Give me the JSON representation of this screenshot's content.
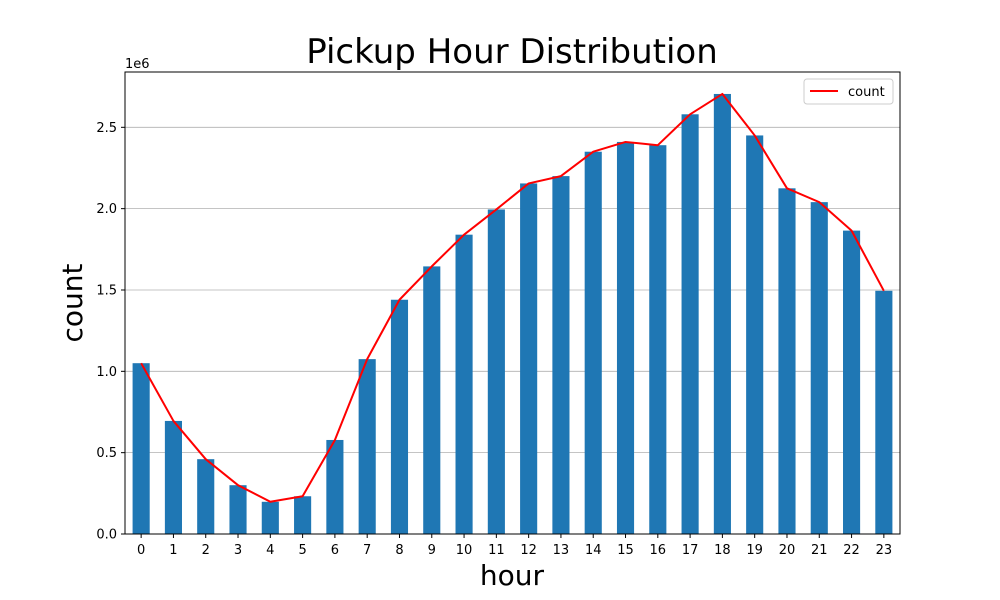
{
  "chart_data": {
    "type": "bar",
    "title": "Pickup Hour Distribution",
    "xlabel": "hour",
    "ylabel": "count",
    "y_offset_label": "1e6",
    "y_scale": 1000000,
    "categories": [
      "0",
      "1",
      "2",
      "3",
      "4",
      "5",
      "6",
      "7",
      "8",
      "9",
      "10",
      "11",
      "12",
      "13",
      "14",
      "15",
      "16",
      "17",
      "18",
      "19",
      "20",
      "21",
      "22",
      "23"
    ],
    "values": [
      1050000,
      695000,
      460000,
      300000,
      198000,
      232000,
      578000,
      1075000,
      1440000,
      1645000,
      1840000,
      1995000,
      2155000,
      2200000,
      2350000,
      2410000,
      2390000,
      2580000,
      2705000,
      2450000,
      2125000,
      2040000,
      1865000,
      1495000
    ],
    "ylim": [
      0,
      2840000
    ],
    "yticks": [
      0,
      500000,
      1000000,
      1500000,
      2000000,
      2500000
    ],
    "ytick_labels": [
      "0.0",
      "0.5",
      "1.0",
      "1.5",
      "2.0",
      "2.5"
    ],
    "grid": "y",
    "series": [
      {
        "name": "",
        "kind": "bar",
        "color": "#1f77b4"
      },
      {
        "name": "count",
        "kind": "line",
        "color": "#ff0000"
      }
    ],
    "legend": {
      "position": "top-right",
      "entries": [
        "count"
      ]
    }
  }
}
